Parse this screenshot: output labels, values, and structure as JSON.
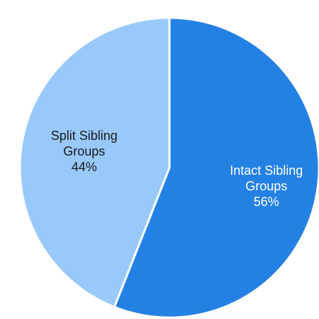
{
  "chart_data": {
    "type": "pie",
    "title": "",
    "start_angle_deg": 0,
    "direction": "clockwise",
    "slices": [
      {
        "name": "Intact Sibling Groups",
        "value": 56,
        "percent_label": "56%",
        "color": "#2481e4",
        "label_lines": [
          "Intact Sibling",
          "Groups",
          "56%"
        ],
        "label_color": "#ffffff"
      },
      {
        "name": "Split Sibling Groups",
        "value": 44,
        "percent_label": "44%",
        "color": "#99c9fb",
        "label_lines": [
          "Split Sibling",
          "Groups",
          "44%"
        ],
        "label_color": "#1a1a1a"
      }
    ],
    "separator_color": "#ffffff"
  }
}
